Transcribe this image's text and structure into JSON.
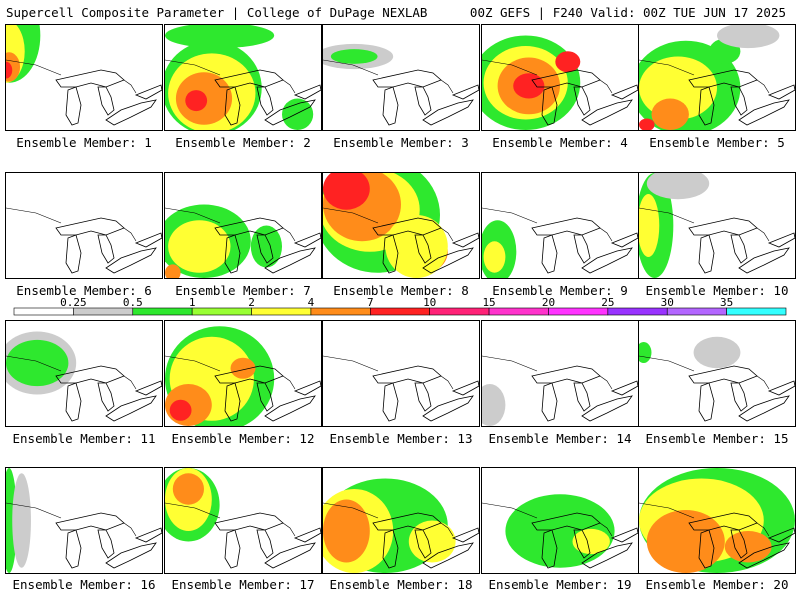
{
  "header": {
    "title": "Supercell Composite Parameter | College of DuPage NEXLAB",
    "run_info": "00Z GEFS | F240 Valid: 00Z TUE JUN 17 2025"
  },
  "members": [
    {
      "label": "Ensemble Member: 1",
      "blobs": [
        [
          0,
          0.02,
          0.1,
          0.2,
          0.45,
          "#2ee82e"
        ],
        [
          1,
          0.0,
          0.25,
          0.12,
          0.3,
          "#ffff33"
        ],
        [
          2,
          0.02,
          0.4,
          0.07,
          0.14,
          "#ff8c1a"
        ],
        [
          3,
          0.0,
          0.43,
          0.04,
          0.08,
          "#ff2222"
        ]
      ]
    },
    {
      "label": "Ensemble Member: 2",
      "blobs": [
        [
          0,
          0.3,
          0.6,
          0.32,
          0.45,
          "#2ee82e"
        ],
        [
          1,
          0.3,
          0.65,
          0.28,
          0.38,
          "#ffff33"
        ],
        [
          2,
          0.25,
          0.7,
          0.18,
          0.25,
          "#ff8c1a"
        ],
        [
          3,
          0.2,
          0.72,
          0.07,
          0.1,
          "#ff2222"
        ],
        [
          4,
          0.35,
          0.1,
          0.35,
          0.12,
          "#2ee82e"
        ],
        [
          5,
          0.85,
          0.85,
          0.1,
          0.15,
          "#2ee82e"
        ]
      ]
    },
    {
      "label": "Ensemble Member: 3",
      "blobs": [
        [
          0,
          0.2,
          0.3,
          0.25,
          0.12,
          "#cccccc"
        ],
        [
          1,
          0.2,
          0.3,
          0.15,
          0.07,
          "#2ee82e"
        ]
      ]
    },
    {
      "label": "Ensemble Member: 4",
      "blobs": [
        [
          0,
          0.28,
          0.55,
          0.35,
          0.45,
          "#2ee82e"
        ],
        [
          1,
          0.28,
          0.55,
          0.27,
          0.35,
          "#ffff33"
        ],
        [
          2,
          0.3,
          0.58,
          0.2,
          0.27,
          "#ff8c1a"
        ],
        [
          3,
          0.3,
          0.58,
          0.1,
          0.12,
          "#ff2222"
        ],
        [
          4,
          0.55,
          0.35,
          0.08,
          0.1,
          "#ff2222"
        ]
      ]
    },
    {
      "label": "Ensemble Member: 5",
      "blobs": [
        [
          0,
          0.3,
          0.6,
          0.35,
          0.45,
          "#2ee82e"
        ],
        [
          1,
          0.25,
          0.6,
          0.25,
          0.3,
          "#ffff33"
        ],
        [
          2,
          0.2,
          0.85,
          0.12,
          0.15,
          "#ff8c1a"
        ],
        [
          3,
          0.05,
          0.95,
          0.05,
          0.06,
          "#ff2222"
        ],
        [
          4,
          0.55,
          0.25,
          0.1,
          0.12,
          "#2ee82e"
        ],
        [
          5,
          0.7,
          0.1,
          0.2,
          0.12,
          "#cccccc"
        ]
      ]
    },
    {
      "label": "Ensemble Member: 6",
      "blobs": []
    },
    {
      "label": "Ensemble Member: 7",
      "blobs": [
        [
          0,
          0.25,
          0.65,
          0.3,
          0.35,
          "#2ee82e"
        ],
        [
          1,
          0.22,
          0.7,
          0.2,
          0.25,
          "#ffff33"
        ],
        [
          2,
          0.05,
          0.95,
          0.05,
          0.08,
          "#ff8c1a"
        ],
        [
          3,
          0.65,
          0.7,
          0.1,
          0.2,
          "#2ee82e"
        ]
      ]
    },
    {
      "label": "Ensemble Member: 8",
      "blobs": [
        [
          0,
          0.35,
          0.4,
          0.4,
          0.55,
          "#2ee82e"
        ],
        [
          1,
          0.3,
          0.35,
          0.32,
          0.4,
          "#ffff33"
        ],
        [
          2,
          0.25,
          0.3,
          0.25,
          0.35,
          "#ff8c1a"
        ],
        [
          3,
          0.15,
          0.15,
          0.15,
          0.2,
          "#ff2222"
        ],
        [
          4,
          0.65,
          0.75,
          0.15,
          0.2,
          "#ff8c1a"
        ],
        [
          5,
          0.6,
          0.7,
          0.2,
          0.3,
          "#ffff33"
        ]
      ]
    },
    {
      "label": "Ensemble Member: 9",
      "blobs": [
        [
          0,
          0.1,
          0.75,
          0.12,
          0.3,
          "#2ee82e"
        ],
        [
          1,
          0.08,
          0.8,
          0.07,
          0.15,
          "#ffff33"
        ]
      ]
    },
    {
      "label": "Ensemble Member: 10",
      "blobs": [
        [
          0,
          0.1,
          0.5,
          0.12,
          0.5,
          "#2ee82e"
        ],
        [
          1,
          0.06,
          0.5,
          0.07,
          0.3,
          "#ffff33"
        ],
        [
          2,
          0.25,
          0.1,
          0.2,
          0.15,
          "#cccccc"
        ]
      ]
    },
    {
      "label": "Ensemble Member: 11",
      "blobs": [
        [
          0,
          0.2,
          0.4,
          0.25,
          0.3,
          "#cccccc"
        ],
        [
          1,
          0.2,
          0.4,
          0.2,
          0.22,
          "#2ee82e"
        ]
      ]
    },
    {
      "label": "Ensemble Member: 12",
      "blobs": [
        [
          0,
          0.35,
          0.55,
          0.35,
          0.5,
          "#2ee82e"
        ],
        [
          1,
          0.3,
          0.55,
          0.27,
          0.4,
          "#ffff33"
        ],
        [
          2,
          0.15,
          0.8,
          0.15,
          0.2,
          "#ff8c1a"
        ],
        [
          3,
          0.1,
          0.85,
          0.07,
          0.1,
          "#ff2222"
        ],
        [
          4,
          0.5,
          0.45,
          0.08,
          0.1,
          "#ff8c1a"
        ]
      ]
    },
    {
      "label": "Ensemble Member: 13",
      "blobs": []
    },
    {
      "label": "Ensemble Member: 14",
      "blobs": [
        [
          0,
          0.05,
          0.8,
          0.1,
          0.2,
          "#cccccc"
        ]
      ]
    },
    {
      "label": "Ensemble Member: 15",
      "blobs": [
        [
          0,
          0.03,
          0.3,
          0.05,
          0.1,
          "#2ee82e"
        ],
        [
          1,
          0.5,
          0.3,
          0.15,
          0.15,
          "#cccccc"
        ]
      ]
    },
    {
      "label": "Ensemble Member: 16",
      "blobs": [
        [
          0,
          0.02,
          0.5,
          0.05,
          0.5,
          "#2ee82e"
        ],
        [
          1,
          0.1,
          0.5,
          0.06,
          0.45,
          "#cccccc"
        ]
      ]
    },
    {
      "label": "Ensemble Member: 17",
      "blobs": [
        [
          0,
          0.15,
          0.35,
          0.2,
          0.35,
          "#2ee82e"
        ],
        [
          1,
          0.15,
          0.3,
          0.15,
          0.3,
          "#ffff33"
        ],
        [
          2,
          0.15,
          0.2,
          0.1,
          0.15,
          "#ff8c1a"
        ]
      ]
    },
    {
      "label": "Ensemble Member: 18",
      "blobs": [
        [
          0,
          0.4,
          0.55,
          0.4,
          0.45,
          "#2ee82e"
        ],
        [
          1,
          0.2,
          0.6,
          0.25,
          0.4,
          "#ffff33"
        ],
        [
          2,
          0.15,
          0.6,
          0.15,
          0.3,
          "#ff8c1a"
        ],
        [
          3,
          0.7,
          0.7,
          0.15,
          0.2,
          "#ffff33"
        ]
      ]
    },
    {
      "label": "Ensemble Member: 19",
      "blobs": [
        [
          0,
          0.5,
          0.6,
          0.35,
          0.35,
          "#2ee82e"
        ],
        [
          1,
          0.7,
          0.7,
          0.12,
          0.12,
          "#ffff33"
        ]
      ]
    },
    {
      "label": "Ensemble Member: 20",
      "blobs": [
        [
          0,
          0.5,
          0.5,
          0.5,
          0.5,
          "#2ee82e"
        ],
        [
          1,
          0.4,
          0.5,
          0.4,
          0.4,
          "#ffff33"
        ],
        [
          2,
          0.3,
          0.7,
          0.25,
          0.3,
          "#ff8c1a"
        ],
        [
          3,
          0.7,
          0.75,
          0.15,
          0.15,
          "#ff8c1a"
        ]
      ]
    }
  ],
  "colorbar": {
    "labels": [
      "0.25",
      "0.5",
      "1",
      "2",
      "4",
      "7",
      "10",
      "15",
      "20",
      "25",
      "30",
      "35"
    ],
    "colors": [
      "#ffffff",
      "#cccccc",
      "#2ee82e",
      "#99ff33",
      "#ffff33",
      "#ff8c1a",
      "#ff2222",
      "#ff2277",
      "#ff33cc",
      "#ff33ff",
      "#9933ff",
      "#b366ff",
      "#33ffff"
    ]
  }
}
